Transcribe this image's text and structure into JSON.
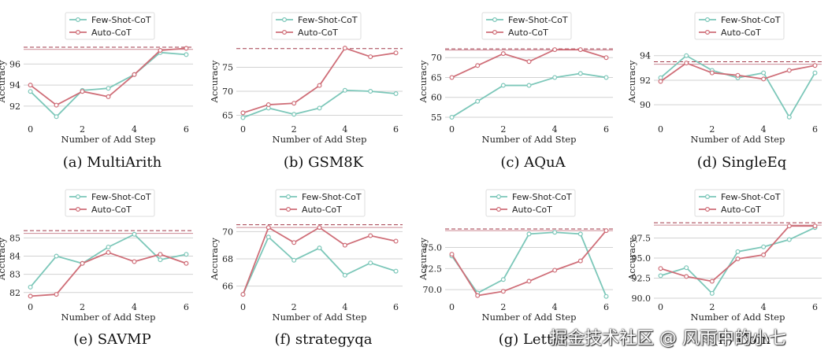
{
  "colors": {
    "few_shot": "#7cc7b9",
    "auto": "#cf6e78",
    "ref_line": "#a23a4a",
    "ref_line_2": "#cc8a94"
  },
  "watermark": "掘金技术社区 @ 风雨中的小七",
  "chart_data": [
    {
      "type": "line",
      "caption": "(a)  MultiArith",
      "xlabel": "Number of Add Step",
      "ylabel": "Accuracy",
      "x": [
        0,
        1,
        2,
        3,
        4,
        5,
        6
      ],
      "ylim": [
        90.5,
        98.2
      ],
      "yticks": [
        92,
        94,
        96
      ],
      "ref_lines": [
        97.6,
        97.4
      ],
      "series": [
        {
          "name": "Few-Shot-CoT",
          "values": [
            93.4,
            91.0,
            93.5,
            93.7,
            95.0,
            97.1,
            96.9
          ]
        },
        {
          "name": "Auto-CoT",
          "values": [
            94.0,
            92.1,
            93.4,
            92.9,
            95.0,
            97.3,
            97.5
          ]
        }
      ]
    },
    {
      "type": "line",
      "caption": "(b)  GSM8K",
      "xlabel": "Number of Add Step",
      "ylabel": "Accuracy",
      "x": [
        0,
        1,
        2,
        3,
        4,
        5,
        6
      ],
      "ylim": [
        63.6,
        80.5
      ],
      "yticks": [
        65,
        70,
        75
      ],
      "ref_lines": [
        78.9
      ],
      "series": [
        {
          "name": "Few-Shot-CoT",
          "values": [
            64.5,
            66.5,
            65.2,
            66.5,
            70.2,
            70.0,
            69.5
          ]
        },
        {
          "name": "Auto-CoT",
          "values": [
            65.5,
            67.2,
            67.5,
            71.2,
            79.0,
            77.2,
            78.0
          ]
        }
      ]
    },
    {
      "type": "line",
      "caption": "(c)  AQuA",
      "xlabel": "Number of Add Step",
      "ylabel": "Accuracy",
      "x": [
        0,
        1,
        2,
        3,
        4,
        5,
        6
      ],
      "ylim": [
        53.8,
        74.2
      ],
      "yticks": [
        55,
        60,
        65,
        70
      ],
      "ref_lines": [
        72.2,
        71.9
      ],
      "series": [
        {
          "name": "Few-Shot-CoT",
          "values": [
            55.0,
            59.0,
            63.0,
            63.0,
            65.0,
            66.0,
            65.0
          ]
        },
        {
          "name": "Auto-CoT",
          "values": [
            65.0,
            68.0,
            71.0,
            69.0,
            72.0,
            72.0,
            70.0
          ]
        }
      ]
    },
    {
      "type": "line",
      "caption": "(d)  SingleEq",
      "xlabel": "Number of Add Step",
      "ylabel": "Accuracy",
      "x": [
        0,
        1,
        2,
        3,
        4,
        5,
        6
      ],
      "ylim": [
        88.6,
        95.2
      ],
      "yticks": [
        90,
        92,
        94
      ],
      "ref_lines": [
        93.5,
        93.3
      ],
      "series": [
        {
          "name": "Few-Shot-CoT",
          "values": [
            92.2,
            94.0,
            92.8,
            92.2,
            92.6,
            89.0,
            92.6
          ]
        },
        {
          "name": "Auto-CoT",
          "values": [
            91.9,
            93.4,
            92.6,
            92.4,
            92.1,
            92.8,
            93.2
          ]
        }
      ]
    },
    {
      "type": "line",
      "caption": "(e)  SAVMP",
      "xlabel": "Number of Add Step",
      "ylabel": "Accuracy",
      "x": [
        0,
        1,
        2,
        3,
        4,
        5,
        6
      ],
      "ylim": [
        81.6,
        86.1
      ],
      "yticks": [
        82,
        83,
        84,
        85
      ],
      "ref_lines": [
        85.4,
        85.25
      ],
      "series": [
        {
          "name": "Few-Shot-CoT",
          "values": [
            82.3,
            84.0,
            83.6,
            84.5,
            85.2,
            83.8,
            84.1
          ]
        },
        {
          "name": "Auto-CoT",
          "values": [
            81.8,
            81.9,
            83.6,
            84.2,
            83.7,
            84.1,
            83.6
          ]
        }
      ]
    },
    {
      "type": "line",
      "caption": "(f)  strategyqa",
      "xlabel": "Number of Add Step",
      "ylabel": "Accuracy",
      "x": [
        0,
        1,
        2,
        3,
        4,
        5,
        6
      ],
      "ylim": [
        65.0,
        71.0
      ],
      "yticks": [
        66,
        68,
        70
      ],
      "ref_lines": [
        70.5,
        70.3
      ],
      "series": [
        {
          "name": "Few-Shot-CoT",
          "values": [
            65.4,
            69.6,
            67.9,
            68.8,
            66.8,
            67.7,
            67.1
          ]
        },
        {
          "name": "Auto-CoT",
          "values": [
            65.4,
            70.3,
            69.2,
            70.3,
            69.0,
            69.7,
            69.3
          ]
        }
      ]
    },
    {
      "type": "line",
      "caption": "(g)  Letter",
      "xlabel": "Number of Add Step",
      "ylabel": "Accuracy",
      "x": [
        0,
        1,
        2,
        3,
        4,
        5,
        6
      ],
      "ylim": [
        68.8,
        78.5
      ],
      "yticks": [
        70.0,
        72.5,
        75.0
      ],
      "ref_lines": [
        77.2,
        77.0
      ],
      "series": [
        {
          "name": "Few-Shot-CoT",
          "values": [
            74.0,
            69.6,
            71.2,
            76.6,
            76.8,
            76.6,
            69.2
          ]
        },
        {
          "name": "Auto-CoT",
          "values": [
            74.2,
            69.3,
            69.8,
            71.0,
            72.3,
            73.4,
            77.0
          ]
        }
      ]
    },
    {
      "type": "line",
      "caption": "(h)  Coin",
      "xlabel": "Number of Add Step",
      "ylabel": "Accuracy",
      "x": [
        0,
        1,
        2,
        3,
        4,
        5,
        6
      ],
      "ylim": [
        89.8,
        100.0
      ],
      "yticks": [
        90.0,
        92.5,
        95.0,
        97.5
      ],
      "ref_lines": [
        99.4,
        99.1
      ],
      "series": [
        {
          "name": "Few-Shot-CoT",
          "values": [
            92.8,
            93.8,
            90.6,
            95.8,
            96.4,
            97.3,
            98.8
          ]
        },
        {
          "name": "Auto-CoT",
          "values": [
            93.7,
            92.7,
            92.1,
            94.9,
            95.4,
            99.0,
            99.0
          ]
        }
      ]
    }
  ]
}
